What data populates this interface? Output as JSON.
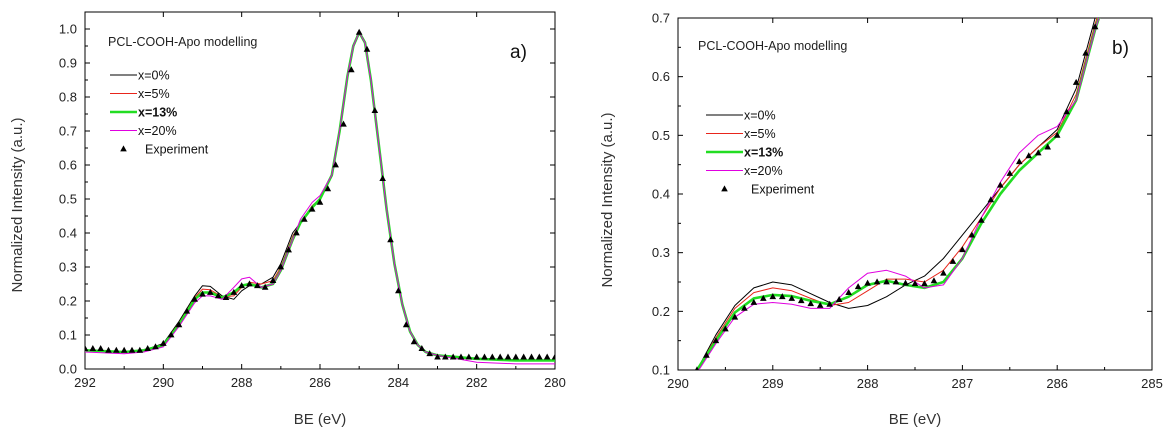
{
  "chart_data": [
    {
      "type": "line",
      "panel": "a)",
      "title": "PCL-COOH-Apo modelling",
      "xlabel": "BE (eV)",
      "ylabel": "Normalized Intensity (a.u.)",
      "xlim": [
        292,
        280
      ],
      "ylim": [
        0,
        1.05
      ],
      "x_reversed": true,
      "xticks": [
        292,
        290,
        288,
        286,
        284,
        282,
        280
      ],
      "yticks": [
        0.0,
        0.1,
        0.2,
        0.3,
        0.4,
        0.5,
        0.6,
        0.7,
        0.8,
        0.9,
        1.0
      ],
      "xtick_labels": [
        "292",
        "290",
        "288",
        "286",
        "284",
        "282",
        "280"
      ],
      "ytick_labels": [
        "0.0",
        "0.1",
        "0.2",
        "0.3",
        "0.4",
        "0.5",
        "0.6",
        "0.7",
        "0.8",
        "0.9",
        "1.0"
      ],
      "legend_position": "upper-left",
      "series": [
        {
          "name": "x=0%",
          "color": "#000000",
          "width": 1,
          "bold": false,
          "x": [
            292,
            291,
            290.5,
            290,
            289.6,
            289.2,
            289.0,
            288.8,
            288.5,
            288.2,
            288.0,
            287.8,
            287.5,
            287.2,
            287.0,
            286.7,
            286.5,
            286.2,
            286.0,
            285.7,
            285.5,
            285.3,
            285.15,
            285.0,
            284.85,
            284.7,
            284.5,
            284.3,
            284.1,
            283.9,
            283.7,
            283.5,
            283.3,
            283.0,
            282.5,
            282,
            281,
            280
          ],
          "y": [
            0.055,
            0.05,
            0.055,
            0.075,
            0.14,
            0.215,
            0.245,
            0.243,
            0.215,
            0.205,
            0.23,
            0.245,
            0.25,
            0.27,
            0.31,
            0.4,
            0.43,
            0.48,
            0.5,
            0.57,
            0.7,
            0.86,
            0.95,
            0.99,
            0.96,
            0.85,
            0.66,
            0.47,
            0.31,
            0.19,
            0.11,
            0.07,
            0.05,
            0.04,
            0.035,
            0.03,
            0.025,
            0.025
          ]
        },
        {
          "name": "x=5%",
          "color": "#e8251b",
          "width": 1,
          "bold": false,
          "x": [
            292,
            291,
            290.5,
            290,
            289.6,
            289.2,
            289.0,
            288.8,
            288.5,
            288.2,
            288.0,
            287.8,
            287.5,
            287.2,
            287.0,
            286.7,
            286.5,
            286.2,
            286.0,
            285.7,
            285.5,
            285.3,
            285.15,
            285.0,
            284.85,
            284.7,
            284.5,
            284.3,
            284.1,
            283.9,
            283.7,
            283.5,
            283.3,
            283.0,
            282.5,
            282,
            281,
            280
          ],
          "y": [
            0.055,
            0.05,
            0.055,
            0.072,
            0.135,
            0.21,
            0.235,
            0.233,
            0.212,
            0.215,
            0.24,
            0.255,
            0.25,
            0.26,
            0.3,
            0.39,
            0.43,
            0.48,
            0.5,
            0.57,
            0.7,
            0.86,
            0.95,
            0.99,
            0.96,
            0.85,
            0.66,
            0.47,
            0.31,
            0.19,
            0.11,
            0.07,
            0.05,
            0.04,
            0.035,
            0.03,
            0.025,
            0.025
          ]
        },
        {
          "name": "x=13%",
          "color": "#22dd22",
          "width": 2.6,
          "bold": true,
          "x": [
            292,
            291,
            290.5,
            290,
            289.6,
            289.2,
            289.0,
            288.8,
            288.5,
            288.2,
            288.0,
            287.8,
            287.5,
            287.2,
            287.0,
            286.7,
            286.5,
            286.2,
            286.0,
            285.7,
            285.5,
            285.3,
            285.15,
            285.0,
            284.85,
            284.7,
            284.5,
            284.3,
            284.1,
            283.9,
            283.7,
            283.5,
            283.3,
            283.0,
            282.5,
            282,
            281,
            280
          ],
          "y": [
            0.055,
            0.05,
            0.055,
            0.07,
            0.13,
            0.205,
            0.225,
            0.225,
            0.21,
            0.225,
            0.245,
            0.25,
            0.24,
            0.25,
            0.29,
            0.38,
            0.43,
            0.475,
            0.5,
            0.57,
            0.7,
            0.86,
            0.95,
            0.99,
            0.96,
            0.85,
            0.66,
            0.47,
            0.31,
            0.19,
            0.11,
            0.07,
            0.05,
            0.04,
            0.035,
            0.03,
            0.025,
            0.025
          ]
        },
        {
          "name": "x=20%",
          "color": "#e000e0",
          "width": 1,
          "bold": false,
          "x": [
            292,
            291,
            290.5,
            290,
            289.6,
            289.2,
            289.0,
            288.8,
            288.5,
            288.2,
            288.0,
            287.8,
            287.5,
            287.2,
            287.0,
            286.7,
            286.5,
            286.2,
            286.0,
            285.7,
            285.5,
            285.3,
            285.15,
            285.0,
            284.85,
            284.7,
            284.5,
            284.3,
            284.1,
            283.9,
            283.7,
            283.5,
            283.3,
            283.0,
            282.5,
            282,
            281,
            280
          ],
          "y": [
            0.05,
            0.045,
            0.05,
            0.065,
            0.125,
            0.195,
            0.215,
            0.215,
            0.205,
            0.24,
            0.265,
            0.27,
            0.24,
            0.25,
            0.29,
            0.38,
            0.44,
            0.49,
            0.51,
            0.57,
            0.7,
            0.86,
            0.95,
            0.99,
            0.96,
            0.85,
            0.66,
            0.47,
            0.31,
            0.19,
            0.11,
            0.07,
            0.05,
            0.04,
            0.03,
            0.02,
            0.015,
            0.015
          ]
        },
        {
          "name": "Experiment",
          "color": "#000000",
          "marker": "triangle",
          "x": [
            292.0,
            291.8,
            291.6,
            291.4,
            291.2,
            291.0,
            290.8,
            290.6,
            290.4,
            290.2,
            290.0,
            289.8,
            289.6,
            289.4,
            289.2,
            289.0,
            288.8,
            288.6,
            288.4,
            288.2,
            288.0,
            287.8,
            287.6,
            287.4,
            287.2,
            287.0,
            286.8,
            286.6,
            286.4,
            286.2,
            286.0,
            285.8,
            285.6,
            285.4,
            285.2,
            285.0,
            284.8,
            284.6,
            284.4,
            284.2,
            284.0,
            283.8,
            283.6,
            283.4,
            283.2,
            283.0,
            282.8,
            282.6,
            282.4,
            282.2,
            282.0,
            281.8,
            281.6,
            281.4,
            281.2,
            281.0,
            280.8,
            280.6,
            280.4,
            280.2,
            280.0
          ],
          "y": [
            0.06,
            0.06,
            0.06,
            0.055,
            0.055,
            0.055,
            0.055,
            0.055,
            0.06,
            0.065,
            0.075,
            0.1,
            0.13,
            0.17,
            0.205,
            0.22,
            0.225,
            0.215,
            0.21,
            0.225,
            0.245,
            0.25,
            0.245,
            0.24,
            0.26,
            0.3,
            0.35,
            0.4,
            0.44,
            0.47,
            0.49,
            0.53,
            0.6,
            0.72,
            0.88,
            0.99,
            0.94,
            0.76,
            0.56,
            0.38,
            0.23,
            0.13,
            0.08,
            0.06,
            0.045,
            0.035,
            0.035,
            0.035,
            0.035,
            0.035,
            0.035,
            0.035,
            0.035,
            0.035,
            0.035,
            0.035,
            0.035,
            0.035,
            0.035,
            0.035,
            0.035
          ]
        }
      ]
    },
    {
      "type": "line",
      "panel": "b)",
      "title": "PCL-COOH-Apo modelling",
      "xlabel": "BE (eV)",
      "ylabel": "Normalized Intensity (a.u.)",
      "xlim": [
        290,
        285
      ],
      "ylim": [
        0.1,
        0.7
      ],
      "x_reversed": true,
      "xticks": [
        290,
        289,
        288,
        287,
        286,
        285
      ],
      "yticks": [
        0.1,
        0.2,
        0.3,
        0.4,
        0.5,
        0.6,
        0.7
      ],
      "xtick_labels": [
        "290",
        "289",
        "288",
        "287",
        "286",
        "285"
      ],
      "ytick_labels": [
        "0.1",
        "0.2",
        "0.3",
        "0.4",
        "0.5",
        "0.6",
        "0.7"
      ],
      "legend_position": "upper-left",
      "series": [
        {
          "name": "x=0%",
          "color": "#000000",
          "width": 1,
          "bold": false,
          "x": [
            289.8,
            289.6,
            289.4,
            289.2,
            289.0,
            288.8,
            288.6,
            288.4,
            288.2,
            288.0,
            287.8,
            287.6,
            287.4,
            287.2,
            287.0,
            286.8,
            286.6,
            286.4,
            286.2,
            286.0,
            285.8,
            285.7,
            285.6,
            285.5
          ],
          "y": [
            0.1,
            0.16,
            0.21,
            0.24,
            0.25,
            0.245,
            0.23,
            0.215,
            0.205,
            0.21,
            0.225,
            0.245,
            0.26,
            0.29,
            0.33,
            0.37,
            0.41,
            0.45,
            0.48,
            0.51,
            0.58,
            0.64,
            0.7,
            0.75
          ]
        },
        {
          "name": "x=5%",
          "color": "#e8251b",
          "width": 1,
          "bold": false,
          "x": [
            289.8,
            289.6,
            289.4,
            289.2,
            289.0,
            288.8,
            288.6,
            288.4,
            288.2,
            288.0,
            287.8,
            287.6,
            287.4,
            287.2,
            287.0,
            286.8,
            286.6,
            286.4,
            286.2,
            286.0,
            285.8,
            285.7,
            285.6,
            285.5
          ],
          "y": [
            0.1,
            0.155,
            0.205,
            0.232,
            0.24,
            0.235,
            0.222,
            0.21,
            0.215,
            0.235,
            0.255,
            0.255,
            0.25,
            0.27,
            0.31,
            0.36,
            0.41,
            0.45,
            0.48,
            0.505,
            0.57,
            0.63,
            0.69,
            0.74
          ]
        },
        {
          "name": "x=13%",
          "color": "#22dd22",
          "width": 2.6,
          "bold": true,
          "x": [
            289.8,
            289.6,
            289.4,
            289.2,
            289.0,
            288.8,
            288.6,
            288.4,
            288.2,
            288.0,
            287.8,
            287.6,
            287.4,
            287.2,
            287.0,
            286.8,
            286.6,
            286.4,
            286.2,
            286.0,
            285.8,
            285.7,
            285.6,
            285.5
          ],
          "y": [
            0.1,
            0.15,
            0.198,
            0.222,
            0.228,
            0.226,
            0.218,
            0.212,
            0.225,
            0.245,
            0.252,
            0.245,
            0.24,
            0.25,
            0.29,
            0.35,
            0.4,
            0.44,
            0.47,
            0.5,
            0.56,
            0.62,
            0.68,
            0.73
          ]
        },
        {
          "name": "x=20%",
          "color": "#e000e0",
          "width": 1,
          "bold": false,
          "x": [
            289.8,
            289.6,
            289.4,
            289.2,
            289.0,
            288.8,
            288.6,
            288.4,
            288.2,
            288.0,
            287.8,
            287.6,
            287.4,
            287.2,
            287.0,
            286.8,
            286.6,
            286.4,
            286.2,
            286.0,
            285.8,
            285.7,
            285.6,
            285.5
          ],
          "y": [
            0.095,
            0.145,
            0.19,
            0.212,
            0.215,
            0.212,
            0.205,
            0.205,
            0.24,
            0.265,
            0.27,
            0.26,
            0.24,
            0.245,
            0.29,
            0.36,
            0.42,
            0.47,
            0.5,
            0.515,
            0.56,
            0.62,
            0.68,
            0.73
          ]
        },
        {
          "name": "Experiment",
          "color": "#000000",
          "marker": "triangle",
          "x": [
            289.8,
            289.7,
            289.6,
            289.5,
            289.4,
            289.3,
            289.2,
            289.1,
            289.0,
            288.9,
            288.8,
            288.7,
            288.6,
            288.5,
            288.4,
            288.3,
            288.2,
            288.1,
            288.0,
            287.9,
            287.8,
            287.7,
            287.6,
            287.5,
            287.4,
            287.3,
            287.2,
            287.1,
            287.0,
            286.9,
            286.8,
            286.7,
            286.6,
            286.5,
            286.4,
            286.3,
            286.2,
            286.1,
            286.0,
            285.9,
            285.8,
            285.7,
            285.6
          ],
          "y": [
            0.1,
            0.125,
            0.15,
            0.17,
            0.19,
            0.205,
            0.215,
            0.222,
            0.225,
            0.225,
            0.222,
            0.218,
            0.213,
            0.21,
            0.212,
            0.22,
            0.232,
            0.242,
            0.248,
            0.25,
            0.25,
            0.25,
            0.248,
            0.247,
            0.247,
            0.252,
            0.265,
            0.285,
            0.305,
            0.33,
            0.355,
            0.39,
            0.415,
            0.435,
            0.455,
            0.465,
            0.47,
            0.48,
            0.5,
            0.54,
            0.59,
            0.64,
            0.685
          ]
        }
      ]
    }
  ]
}
